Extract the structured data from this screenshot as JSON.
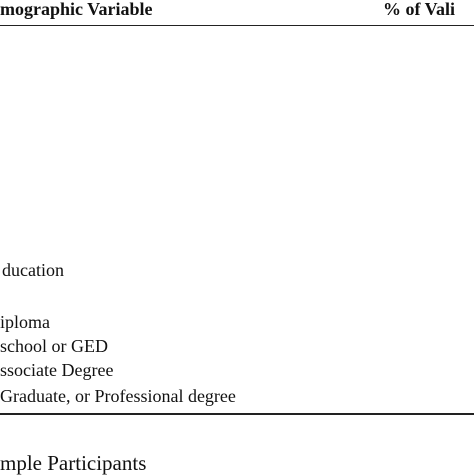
{
  "header": {
    "columns": [
      "mographic Variable",
      "% of Vali"
    ]
  },
  "table": {
    "section": "ducation",
    "rows": [
      "iploma",
      "school or GED",
      "ssociate Degree",
      "Graduate, or Professional degree"
    ]
  },
  "caption": "mple Participants"
}
